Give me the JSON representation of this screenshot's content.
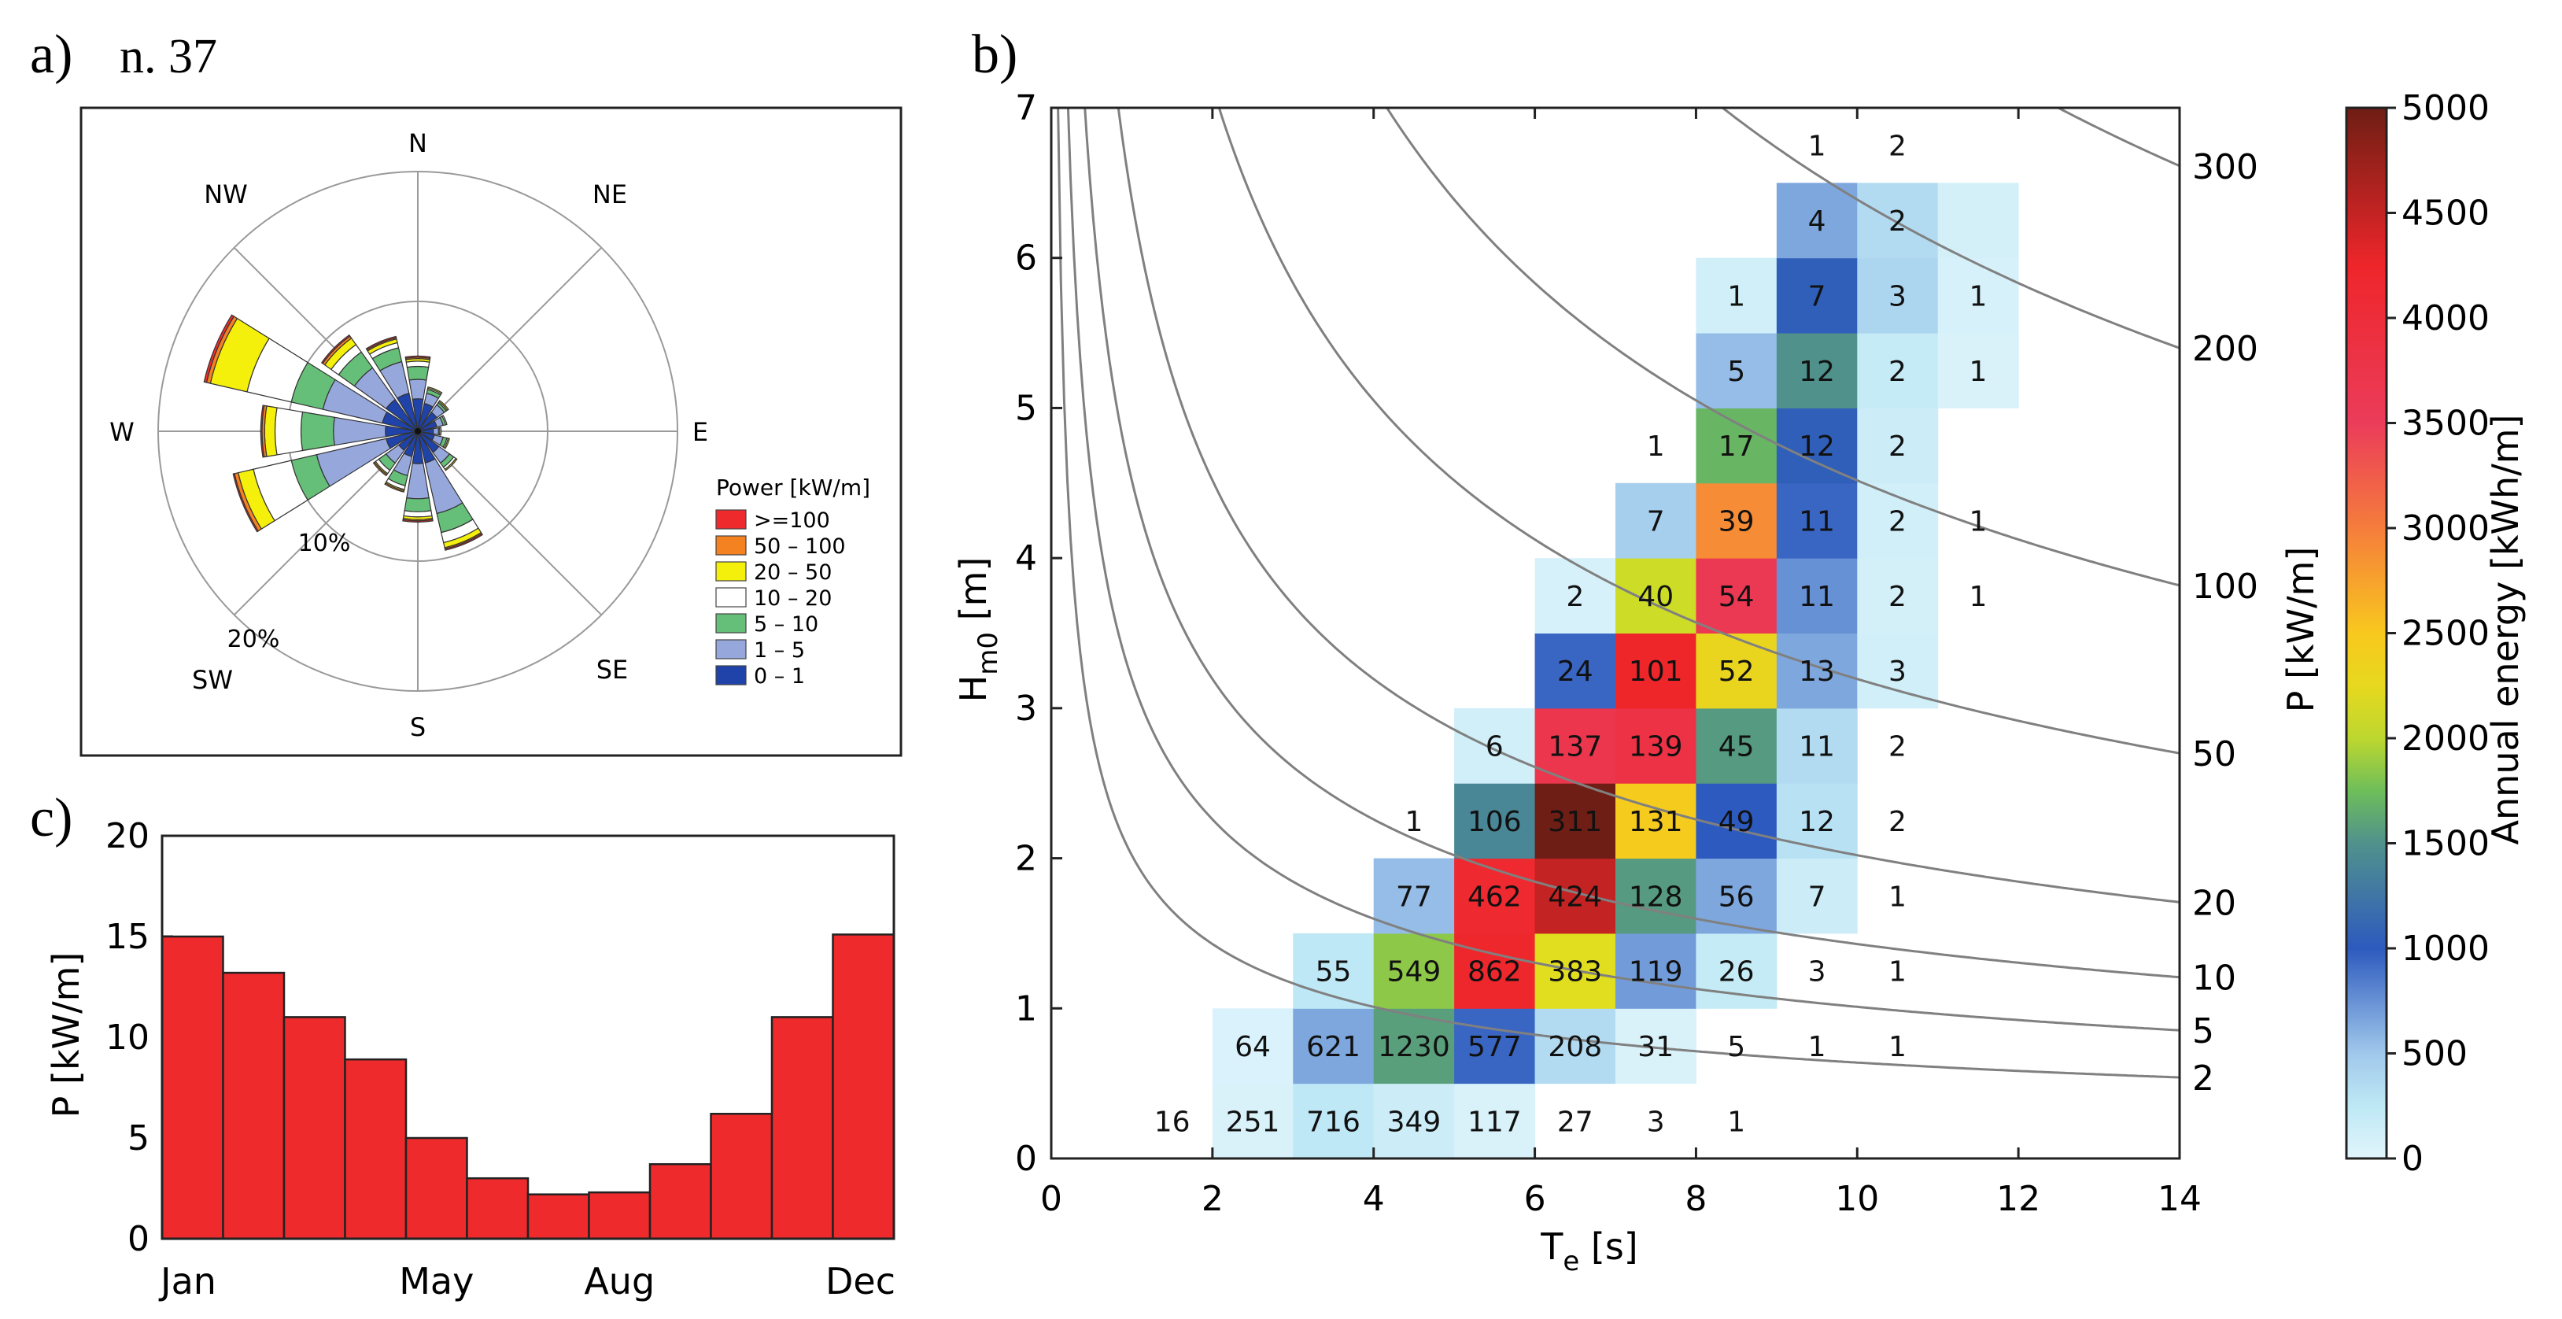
{
  "chart_data": [
    {
      "type": "wind-rose",
      "panel_label": "a)",
      "title": "n. 37",
      "directions": [
        "N",
        "NE",
        "E",
        "SE",
        "S",
        "SW",
        "W",
        "NW"
      ],
      "ring_labels": [
        "10%",
        "20%"
      ],
      "legend_title": "Power [kW/m]",
      "classes": [
        {
          "label": ">=100",
          "color": "#ee2a2d"
        },
        {
          "label": "50 – 100",
          "color": "#f58220"
        },
        {
          "label": "20 – 50",
          "color": "#f5f00b"
        },
        {
          "label": "10 – 20",
          "color": "#ffffff"
        },
        {
          "label": "5 – 10",
          "color": "#66bf78"
        },
        {
          "label": "1 – 5",
          "color": "#96a7dc"
        },
        {
          "label": "0 – 1",
          "color": "#1f43a8"
        }
      ],
      "sectors": [
        {
          "dir": 0,
          "cum": [
            2.5,
            4.0,
            5.0,
            5.4,
            5.6,
            5.7,
            5.8
          ]
        },
        {
          "dir": 22.5,
          "cum": [
            2.2,
            3.0,
            3.3,
            3.4,
            3.5,
            3.5,
            3.5
          ]
        },
        {
          "dir": 45,
          "cum": [
            1.8,
            2.5,
            2.7,
            2.8,
            2.9,
            2.9,
            2.9
          ]
        },
        {
          "dir": 67.5,
          "cum": [
            1.5,
            2.0,
            2.2,
            2.3,
            2.3,
            2.3,
            2.3
          ]
        },
        {
          "dir": 90,
          "cum": [
            1.2,
            1.6,
            1.7,
            1.8,
            1.8,
            1.8,
            1.8
          ]
        },
        {
          "dir": 112.5,
          "cum": [
            1.3,
            2.0,
            2.3,
            2.4,
            2.5,
            2.5,
            2.5
          ]
        },
        {
          "dir": 135,
          "cum": [
            2.0,
            3.0,
            3.4,
            3.6,
            3.7,
            3.7,
            3.7
          ]
        },
        {
          "dir": 157.5,
          "cum": [
            2.5,
            6.5,
            8.0,
            8.8,
            9.2,
            9.3,
            9.4
          ]
        },
        {
          "dir": 180,
          "cum": [
            2.5,
            5.2,
            6.2,
            6.6,
            6.8,
            6.9,
            7.0
          ]
        },
        {
          "dir": 202.5,
          "cum": [
            2.0,
            3.5,
            4.3,
            4.6,
            4.7,
            4.8,
            4.8
          ]
        },
        {
          "dir": 225,
          "cum": [
            1.8,
            3.0,
            3.7,
            4.0,
            4.1,
            4.2,
            4.2
          ]
        },
        {
          "dir": 247.5,
          "cum": [
            2.5,
            8.0,
            10.0,
            13.0,
            14.2,
            14.5,
            14.6
          ]
        },
        {
          "dir": 270,
          "cum": [
            2.5,
            6.5,
            9.0,
            11.0,
            11.8,
            12.0,
            12.1
          ]
        },
        {
          "dir": 292.5,
          "cum": [
            2.8,
            7.5,
            10.0,
            13.5,
            16.4,
            16.7,
            16.9
          ]
        },
        {
          "dir": 315,
          "cum": [
            3.0,
            6.0,
            7.5,
            8.2,
            8.8,
            9.0,
            9.1
          ]
        },
        {
          "dir": 337.5,
          "cum": [
            3.0,
            5.5,
            6.6,
            7.0,
            7.3,
            7.4,
            7.5
          ]
        }
      ]
    },
    {
      "type": "bar",
      "panel_label": "c)",
      "ylabel": "P [kW/m]",
      "ylim": [
        0,
        20
      ],
      "yticks": [
        0,
        5,
        10,
        15,
        20
      ],
      "categories": [
        "Jan",
        "Feb",
        "Mar",
        "Apr",
        "May",
        "Jun",
        "Jul",
        "Aug",
        "Sep",
        "Oct",
        "Nov",
        "Dec"
      ],
      "xtick_labels": [
        "Jan",
        "May",
        "Aug",
        "Dec"
      ],
      "values": [
        15.0,
        13.2,
        11.0,
        8.9,
        5.0,
        3.0,
        2.2,
        2.3,
        3.7,
        6.2,
        11.0,
        15.1
      ],
      "bar_color": "#ee2a2d"
    },
    {
      "type": "heatmap",
      "panel_label": "b)",
      "xlabel_main": "T",
      "xlabel_sub": "e",
      "xlabel_unit": " [s]",
      "ylabel_main": "H",
      "ylabel_sub": "m0",
      "ylabel_unit": " [m]",
      "xlim": [
        0,
        14
      ],
      "ylim": [
        0,
        7
      ],
      "xticks": [
        0,
        2,
        4,
        6,
        8,
        10,
        12,
        14
      ],
      "yticks": [
        0,
        1,
        2,
        3,
        4,
        5,
        6,
        7
      ],
      "cell_width_s": 1,
      "cell_height_m": 0.5,
      "right_axis_label": "P [kW/m]",
      "power_contours": [
        2,
        5,
        10,
        20,
        50,
        100,
        200,
        300
      ],
      "colorbar": {
        "label": "Annual energy [kWh/m]",
        "min": 0,
        "max": 5000,
        "ticks": [
          0,
          500,
          1000,
          1500,
          2000,
          2500,
          3000,
          3500,
          4000,
          4500,
          5000
        ]
      },
      "cells": [
        {
          "t": 1.5,
          "h": 0.25,
          "count": 16,
          "energy": 10
        },
        {
          "t": 2.5,
          "h": 0.25,
          "count": 251,
          "energy": 60
        },
        {
          "t": 3.5,
          "h": 0.25,
          "count": 716,
          "energy": 250
        },
        {
          "t": 4.5,
          "h": 0.25,
          "count": 349,
          "energy": 150
        },
        {
          "t": 5.5,
          "h": 0.25,
          "count": 117,
          "energy": 60
        },
        {
          "t": 6.5,
          "h": 0.25,
          "count": 27,
          "energy": 20
        },
        {
          "t": 7.5,
          "h": 0.25,
          "count": 3,
          "energy": 2
        },
        {
          "t": 8.5,
          "h": 0.25,
          "count": 1,
          "energy": 1
        },
        {
          "t": 2.5,
          "h": 0.75,
          "count": 64,
          "energy": 50
        },
        {
          "t": 3.5,
          "h": 0.75,
          "count": 621,
          "energy": 650
        },
        {
          "t": 4.5,
          "h": 0.75,
          "count": 1230,
          "energy": 1580
        },
        {
          "t": 5.5,
          "h": 0.75,
          "count": 577,
          "energy": 950
        },
        {
          "t": 6.5,
          "h": 0.75,
          "count": 208,
          "energy": 350
        },
        {
          "t": 7.5,
          "h": 0.75,
          "count": 31,
          "energy": 60
        },
        {
          "t": 8.5,
          "h": 0.75,
          "count": 5,
          "energy": 12
        },
        {
          "t": 9.5,
          "h": 0.75,
          "count": 1,
          "energy": 2
        },
        {
          "t": 10.5,
          "h": 0.75,
          "count": 1,
          "energy": 2
        },
        {
          "t": 3.5,
          "h": 1.25,
          "count": 55,
          "energy": 250
        },
        {
          "t": 4.5,
          "h": 1.25,
          "count": 549,
          "energy": 1850
        },
        {
          "t": 5.5,
          "h": 1.25,
          "count": 862,
          "energy": 4200
        },
        {
          "t": 6.5,
          "h": 1.25,
          "count": 383,
          "energy": 2150
        },
        {
          "t": 7.5,
          "h": 1.25,
          "count": 119,
          "energy": 700
        },
        {
          "t": 8.5,
          "h": 1.25,
          "count": 26,
          "energy": 200
        },
        {
          "t": 9.5,
          "h": 1.25,
          "count": 3,
          "energy": 15
        },
        {
          "t": 10.5,
          "h": 1.25,
          "count": 1,
          "energy": 5
        },
        {
          "t": 4.5,
          "h": 1.75,
          "count": 77,
          "energy": 550
        },
        {
          "t": 5.5,
          "h": 1.75,
          "count": 462,
          "energy": 4150
        },
        {
          "t": 6.5,
          "h": 1.75,
          "count": 424,
          "energy": 4500
        },
        {
          "t": 7.5,
          "h": 1.75,
          "count": 128,
          "energy": 1550
        },
        {
          "t": 8.5,
          "h": 1.75,
          "count": 56,
          "energy": 650
        },
        {
          "t": 9.5,
          "h": 1.75,
          "count": 7,
          "energy": 150
        },
        {
          "t": 10.5,
          "h": 1.75,
          "count": 1,
          "energy": 20
        },
        {
          "t": 4.5,
          "h": 2.25,
          "count": 1,
          "energy": 20
        },
        {
          "t": 5.5,
          "h": 2.25,
          "count": 106,
          "energy": 1400
        },
        {
          "t": 6.5,
          "h": 2.25,
          "count": 311,
          "energy": 5000
        },
        {
          "t": 7.5,
          "h": 2.25,
          "count": 131,
          "energy": 2450
        },
        {
          "t": 8.5,
          "h": 2.25,
          "count": 49,
          "energy": 1000
        },
        {
          "t": 9.5,
          "h": 2.25,
          "count": 12,
          "energy": 300
        },
        {
          "t": 10.5,
          "h": 2.25,
          "count": 2,
          "energy": 30
        },
        {
          "t": 5.5,
          "h": 2.75,
          "count": 6,
          "energy": 120
        },
        {
          "t": 6.5,
          "h": 2.75,
          "count": 137,
          "energy": 3700
        },
        {
          "t": 7.5,
          "h": 2.75,
          "count": 139,
          "energy": 3850
        },
        {
          "t": 8.5,
          "h": 2.75,
          "count": 45,
          "energy": 1550
        },
        {
          "t": 9.5,
          "h": 2.75,
          "count": 11,
          "energy": 350
        },
        {
          "t": 10.5,
          "h": 2.75,
          "count": 2,
          "energy": 40
        },
        {
          "t": 6.5,
          "h": 3.25,
          "count": 24,
          "energy": 950
        },
        {
          "t": 7.5,
          "h": 3.25,
          "count": 101,
          "energy": 4250
        },
        {
          "t": 8.5,
          "h": 3.25,
          "count": 52,
          "energy": 2300
        },
        {
          "t": 9.5,
          "h": 3.25,
          "count": 13,
          "energy": 650
        },
        {
          "t": 10.5,
          "h": 3.25,
          "count": 3,
          "energy": 120
        },
        {
          "t": 6.5,
          "h": 3.75,
          "count": 2,
          "energy": 80
        },
        {
          "t": 7.5,
          "h": 3.75,
          "count": 40,
          "energy": 2050
        },
        {
          "t": 8.5,
          "h": 3.75,
          "count": 54,
          "energy": 3600
        },
        {
          "t": 9.5,
          "h": 3.75,
          "count": 11,
          "energy": 750
        },
        {
          "t": 10.5,
          "h": 3.75,
          "count": 2,
          "energy": 100
        },
        {
          "t": 11.5,
          "h": 3.75,
          "count": 1,
          "energy": 20
        },
        {
          "t": 7.5,
          "h": 4.25,
          "count": 7,
          "energy": 450
        },
        {
          "t": 8.5,
          "h": 4.25,
          "count": 39,
          "energy": 2900
        },
        {
          "t": 9.5,
          "h": 4.25,
          "count": 11,
          "energy": 950
        },
        {
          "t": 10.5,
          "h": 4.25,
          "count": 2,
          "energy": 120
        },
        {
          "t": 11.5,
          "h": 4.25,
          "count": 1,
          "energy": 20
        },
        {
          "t": 7.5,
          "h": 4.75,
          "count": 1,
          "energy": 10
        },
        {
          "t": 8.5,
          "h": 4.75,
          "count": 17,
          "energy": 1700
        },
        {
          "t": 9.5,
          "h": 4.75,
          "count": 12,
          "energy": 1050
        },
        {
          "t": 10.5,
          "h": 4.75,
          "count": 2,
          "energy": 150
        },
        {
          "t": 8.5,
          "h": 5.25,
          "count": 5,
          "energy": 550
        },
        {
          "t": 9.5,
          "h": 5.25,
          "count": 12,
          "energy": 1500
        },
        {
          "t": 10.5,
          "h": 5.25,
          "count": 2,
          "energy": 200
        },
        {
          "t": 11.5,
          "h": 5.25,
          "count": 1,
          "energy": 60
        },
        {
          "t": 8.5,
          "h": 5.75,
          "count": 1,
          "energy": 120
        },
        {
          "t": 9.5,
          "h": 5.75,
          "count": 7,
          "energy": 1050
        },
        {
          "t": 10.5,
          "h": 5.75,
          "count": 3,
          "energy": 400
        },
        {
          "t": 11.5,
          "h": 5.75,
          "count": 1,
          "energy": 80
        },
        {
          "t": 9.5,
          "h": 6.25,
          "count": 4,
          "energy": 650
        },
        {
          "t": 10.5,
          "h": 6.25,
          "count": 2,
          "energy": 350
        },
        {
          "t": 11.5,
          "h": 6.25,
          "count": null,
          "energy": 100
        },
        {
          "t": 9.5,
          "h": 6.75,
          "count": 1,
          "energy": null
        },
        {
          "t": 10.5,
          "h": 6.75,
          "count": 2,
          "energy": null
        }
      ]
    }
  ]
}
